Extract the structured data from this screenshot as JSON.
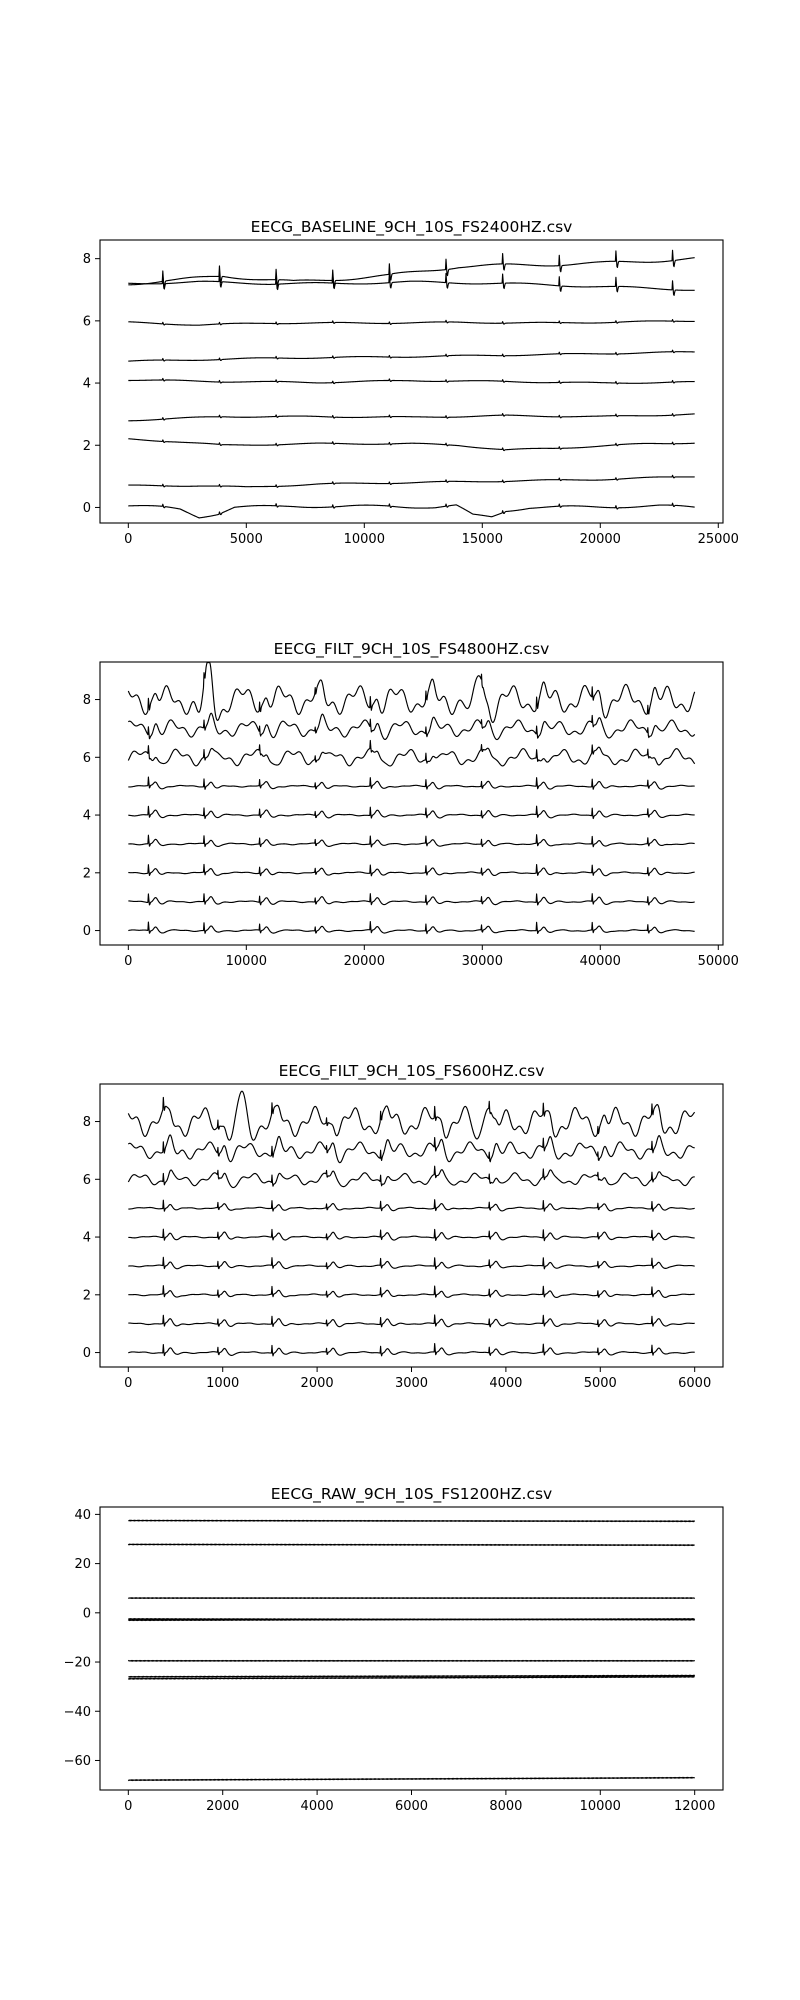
{
  "chart_data": [
    {
      "type": "line",
      "title": "EECG_BASELINE_9CH_10S_FS2400HZ.csv",
      "xlabel": "",
      "ylabel": "",
      "xlim": [
        -1200,
        25200
      ],
      "ylim": [
        -0.5,
        8.6
      ],
      "xticks": [
        0,
        5000,
        10000,
        15000,
        20000,
        25000
      ],
      "yticks": [
        0,
        2,
        4,
        6,
        8
      ],
      "grid": false,
      "n_samples": 24000,
      "beat_interval": 2400,
      "beat_offset": 1450,
      "series": [
        {
          "offset": 0.0,
          "baseline": [
            [
              0,
              0.05
            ],
            [
              1500,
              0.0
            ],
            [
              2200,
              -0.05
            ],
            [
              3000,
              -0.3
            ],
            [
              3800,
              -0.2
            ],
            [
              4500,
              0.0
            ],
            [
              7000,
              0.05
            ],
            [
              9000,
              0.02
            ],
            [
              11000,
              0.05
            ],
            [
              13000,
              0.0
            ],
            [
              13900,
              0.05
            ],
            [
              14600,
              -0.25
            ],
            [
              15400,
              -0.3
            ],
            [
              16000,
              -0.1
            ],
            [
              17000,
              0.0
            ],
            [
              20000,
              0.02
            ],
            [
              22500,
              0.05
            ],
            [
              24000,
              0.0
            ]
          ],
          "spike": 0.08,
          "wiggle": 0.04
        },
        {
          "offset": 0.7,
          "baseline": [
            [
              0,
              0.0
            ],
            [
              3000,
              0.0
            ],
            [
              5000,
              -0.05
            ],
            [
              8000,
              0.05
            ],
            [
              12000,
              0.1
            ],
            [
              16000,
              0.15
            ],
            [
              20000,
              0.2
            ],
            [
              24000,
              0.3
            ]
          ],
          "spike": 0.06,
          "wiggle": 0.02
        },
        {
          "offset": 2.2,
          "baseline": [
            [
              0,
              0.0
            ],
            [
              2000,
              -0.08
            ],
            [
              4000,
              -0.2
            ],
            [
              8000,
              -0.15
            ],
            [
              12000,
              -0.15
            ],
            [
              14000,
              -0.2
            ],
            [
              16000,
              -0.35
            ],
            [
              18000,
              -0.3
            ],
            [
              22000,
              -0.15
            ],
            [
              24000,
              -0.12
            ]
          ],
          "spike": 0.06,
          "wiggle": 0.02
        },
        {
          "offset": 2.8,
          "baseline": [
            [
              0,
              0.0
            ],
            [
              4000,
              0.12
            ],
            [
              8000,
              0.12
            ],
            [
              12000,
              0.1
            ],
            [
              16000,
              0.15
            ],
            [
              20000,
              0.12
            ],
            [
              24000,
              0.2
            ]
          ],
          "spike": 0.06,
          "wiggle": 0.02
        },
        {
          "offset": 4.1,
          "baseline": [
            [
              0,
              0.0
            ],
            [
              4000,
              -0.05
            ],
            [
              8000,
              -0.08
            ],
            [
              12000,
              -0.02
            ],
            [
              16000,
              -0.05
            ],
            [
              20000,
              -0.1
            ],
            [
              24000,
              -0.07
            ]
          ],
          "spike": 0.06,
          "wiggle": 0.02
        },
        {
          "offset": 4.7,
          "baseline": [
            [
              0,
              0.0
            ],
            [
              6000,
              0.1
            ],
            [
              12000,
              0.15
            ],
            [
              18000,
              0.22
            ],
            [
              24000,
              0.3
            ]
          ],
          "spike": 0.06,
          "wiggle": 0.02
        },
        {
          "offset": 5.95,
          "baseline": [
            [
              0,
              0.0
            ],
            [
              3000,
              -0.08
            ],
            [
              6000,
              -0.02
            ],
            [
              10000,
              -0.02
            ],
            [
              14000,
              0.0
            ],
            [
              18000,
              -0.02
            ],
            [
              24000,
              0.05
            ]
          ],
          "spike": 0.06,
          "wiggle": 0.02
        },
        {
          "offset": 7.2,
          "baseline": [
            [
              0,
              0.0
            ],
            [
              3000,
              0.05
            ],
            [
              6000,
              0.0
            ],
            [
              9000,
              0.0
            ],
            [
              12000,
              0.05
            ],
            [
              16000,
              0.0
            ],
            [
              20000,
              -0.1
            ],
            [
              24000,
              -0.2
            ]
          ],
          "spike": 0.35,
          "wiggle": 0.03
        },
        {
          "offset": 7.2,
          "baseline": [
            [
              0,
              0.0
            ],
            [
              2000,
              0.1
            ],
            [
              4000,
              0.25
            ],
            [
              7000,
              0.05
            ],
            [
              9000,
              0.15
            ],
            [
              11000,
              0.25
            ],
            [
              14000,
              0.55
            ],
            [
              17000,
              0.6
            ],
            [
              20000,
              0.65
            ],
            [
              24000,
              0.8
            ]
          ],
          "spike": 0.4,
          "wiggle": 0.05
        }
      ]
    },
    {
      "type": "line",
      "title": "EECG_FILT_9CH_10S_FS4800HZ.csv",
      "xlabel": "",
      "ylabel": "",
      "xlim": [
        -2400,
        50400
      ],
      "ylim": [
        -0.5,
        9.3
      ],
      "xticks": [
        0,
        10000,
        20000,
        30000,
        40000,
        50000
      ],
      "yticks": [
        0,
        2,
        4,
        6,
        8
      ],
      "grid": false,
      "n_samples": 48000,
      "beat_interval": 4700,
      "beat_offset": 1700,
      "series": [
        {
          "offset": 0,
          "amp": 0.3,
          "twave": 0.15,
          "wiggle": 0.02
        },
        {
          "offset": 1,
          "amp": 0.3,
          "twave": 0.15,
          "wiggle": 0.02
        },
        {
          "offset": 2,
          "amp": 0.3,
          "twave": 0.15,
          "wiggle": 0.02
        },
        {
          "offset": 3,
          "amp": 0.3,
          "twave": 0.15,
          "wiggle": 0.02
        },
        {
          "offset": 4,
          "amp": 0.3,
          "twave": 0.15,
          "wiggle": 0.02
        },
        {
          "offset": 5,
          "amp": 0.3,
          "twave": 0.15,
          "wiggle": 0.02
        },
        {
          "offset": 6,
          "amp": 0.3,
          "twave": 0.25,
          "wiggle": 0.2
        },
        {
          "offset": 7,
          "amp": 0.3,
          "twave": 0.25,
          "wiggle": 0.2
        },
        {
          "offset": 8,
          "amp": 0.4,
          "twave": 0.25,
          "wiggle": 0.35,
          "big_events": [
            6800,
            29800
          ]
        }
      ]
    },
    {
      "type": "line",
      "title": "EECG_FILT_9CH_10S_FS600HZ.csv",
      "xlabel": "",
      "ylabel": "",
      "xlim": [
        -300,
        6300
      ],
      "ylim": [
        -0.5,
        9.3
      ],
      "xticks": [
        0,
        1000,
        2000,
        3000,
        4000,
        5000,
        6000
      ],
      "yticks": [
        0,
        2,
        4,
        6,
        8
      ],
      "grid": false,
      "n_samples": 6000,
      "beat_interval": 575,
      "beat_offset": 370,
      "series": [
        {
          "offset": 0,
          "amp": 0.3,
          "twave": 0.15,
          "wiggle": 0.02
        },
        {
          "offset": 1,
          "amp": 0.3,
          "twave": 0.15,
          "wiggle": 0.02
        },
        {
          "offset": 2,
          "amp": 0.3,
          "twave": 0.15,
          "wiggle": 0.02
        },
        {
          "offset": 3,
          "amp": 0.3,
          "twave": 0.15,
          "wiggle": 0.02
        },
        {
          "offset": 4,
          "amp": 0.3,
          "twave": 0.15,
          "wiggle": 0.02
        },
        {
          "offset": 5,
          "amp": 0.3,
          "twave": 0.15,
          "wiggle": 0.02
        },
        {
          "offset": 6,
          "amp": 0.3,
          "twave": 0.25,
          "wiggle": 0.15
        },
        {
          "offset": 7,
          "amp": 0.35,
          "twave": 0.25,
          "wiggle": 0.2
        },
        {
          "offset": 8,
          "amp": 0.4,
          "twave": 0.25,
          "wiggle": 0.35,
          "big_events": [
            1200,
            3800
          ]
        }
      ]
    },
    {
      "type": "line",
      "title": "EECG_RAW_9CH_10S_FS1200HZ.csv",
      "xlabel": "",
      "ylabel": "",
      "xlim": [
        -600,
        12600
      ],
      "ylim": [
        -72,
        43
      ],
      "xticks": [
        0,
        2000,
        4000,
        6000,
        8000,
        10000,
        12000
      ],
      "yticks": [
        -60,
        -40,
        -20,
        0,
        20,
        40
      ],
      "grid": false,
      "n_samples": 12000,
      "series": [
        {
          "start": 37.5,
          "end": 37.2
        },
        {
          "start": 27.8,
          "end": 27.5
        },
        {
          "start": 6.0,
          "end": 6.0
        },
        {
          "start": -2.5,
          "end": -2.8
        },
        {
          "start": -3.0,
          "end": -2.5
        },
        {
          "start": -19.5,
          "end": -19.5
        },
        {
          "start": -26.0,
          "end": -25.5
        },
        {
          "start": -26.8,
          "end": -26.0
        },
        {
          "start": -68.0,
          "end": -67.0
        }
      ]
    }
  ]
}
